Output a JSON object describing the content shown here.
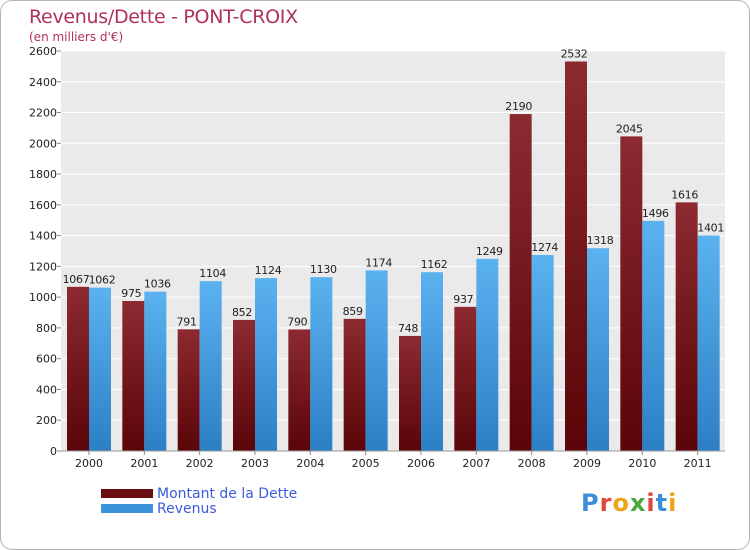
{
  "header": {
    "title": "Revenus/Dette - PONT-CROIX",
    "subtitle": "(en milliers d'€)"
  },
  "chart_data": {
    "type": "bar",
    "categories": [
      "2000",
      "2001",
      "2002",
      "2003",
      "2004",
      "2005",
      "2006",
      "2007",
      "2008",
      "2009",
      "2010",
      "2011"
    ],
    "series": [
      {
        "name": "Montant de la Dette",
        "color": "#7a1a1f",
        "values": [
          1067,
          975,
          791,
          852,
          790,
          859,
          748,
          937,
          2190,
          2532,
          2045,
          1616
        ]
      },
      {
        "name": "Revenus",
        "color": "#4aa3e6",
        "values": [
          1062,
          1036,
          1104,
          1124,
          1130,
          1174,
          1162,
          1249,
          1274,
          1318,
          1496,
          1401
        ]
      }
    ],
    "yticks": [
      0,
      200,
      400,
      600,
      800,
      1000,
      1200,
      1400,
      1600,
      1800,
      2000,
      2200,
      2400,
      2600
    ],
    "ylim": [
      0,
      2600
    ],
    "grid": true
  },
  "legend": {
    "items": [
      {
        "label": "Montant de la Dette",
        "color": "#6a0d12"
      },
      {
        "label": "Revenus",
        "color": "#3d93db"
      }
    ]
  },
  "logo": {
    "letters": [
      {
        "ch": "P",
        "color": "#3a8fd6"
      },
      {
        "ch": "r",
        "color": "#e2463a"
      },
      {
        "ch": "o",
        "color": "#f0a21a"
      },
      {
        "ch": "x",
        "color": "#4aa83a"
      },
      {
        "ch": "i",
        "color": "#e2463a"
      },
      {
        "ch": "t",
        "color": "#3a8fd6"
      },
      {
        "ch": "i",
        "color": "#f0a21a"
      }
    ]
  }
}
